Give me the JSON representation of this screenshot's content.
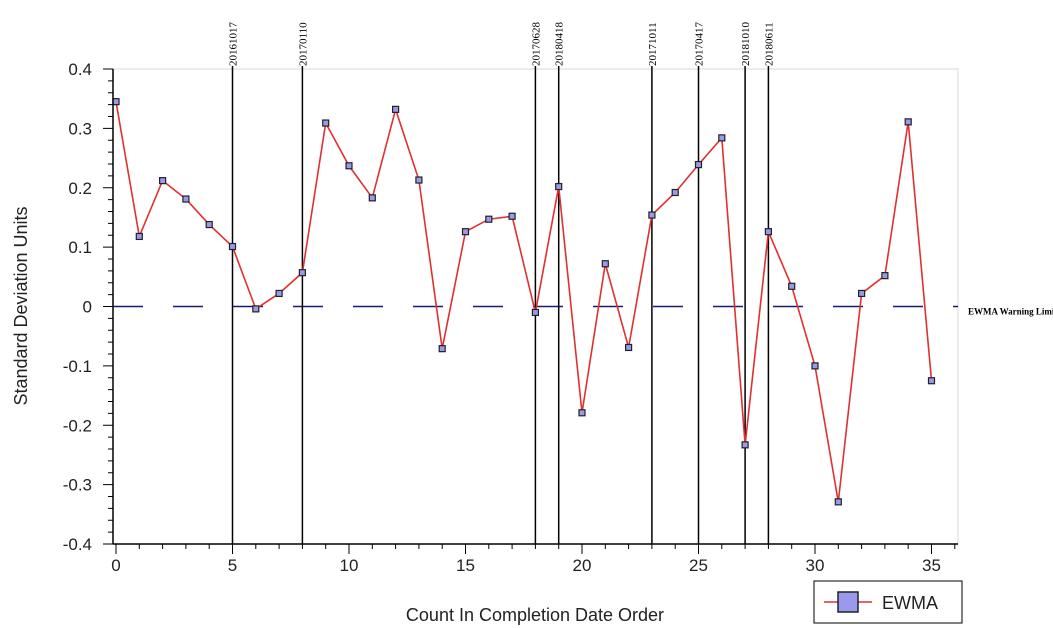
{
  "chart_data": {
    "type": "line",
    "xlabel": "Count In Completion Date Order",
    "ylabel": "Standard Deviation Units",
    "xlim": [
      0,
      36
    ],
    "ylim": [
      -0.4,
      0.4
    ],
    "x_ticks": [
      0,
      5,
      10,
      15,
      20,
      25,
      30,
      35
    ],
    "y_ticks": [
      0.4,
      0.3,
      0.2,
      0.1,
      0,
      -0.1,
      -0.2,
      -0.3,
      -0.4
    ],
    "x_tick_labels": [
      "0",
      "5",
      "10",
      "15",
      "20",
      "25",
      "30",
      "35"
    ],
    "y_tick_labels": [
      "0.4",
      "0.3",
      "0.2",
      "0.1",
      "0",
      "-0.1",
      "-0.2",
      "-0.3",
      "-0.4"
    ],
    "series": [
      {
        "name": "EWMA",
        "color": "#e03030",
        "marker_color": "#9999ee",
        "x": [
          0,
          1,
          2,
          3,
          4,
          5,
          6,
          7,
          8,
          9,
          10,
          11,
          12,
          13,
          14,
          15,
          16,
          17,
          18,
          19,
          20,
          21,
          22,
          23,
          24,
          25,
          26,
          27,
          28,
          29,
          30,
          31,
          32,
          33,
          34,
          35
        ],
        "values": [
          0.345,
          0.118,
          0.212,
          0.181,
          0.138,
          0.101,
          -0.004,
          0.022,
          0.057,
          0.309,
          0.237,
          0.183,
          0.332,
          0.213,
          -0.071,
          0.126,
          0.147,
          0.152,
          -0.01,
          0.202,
          -0.179,
          0.072,
          -0.069,
          0.154,
          0.192,
          0.239,
          0.284,
          -0.233,
          0.126,
          0.034,
          -0.1,
          -0.329,
          0.022,
          0.052,
          0.311,
          -0.125
        ]
      }
    ],
    "reference_line": {
      "label": "EWMA Warning Limit",
      "y": 0,
      "color": "#1a1a6e"
    },
    "vertical_lines": [
      {
        "x": 5,
        "label": "20161017"
      },
      {
        "x": 8,
        "label": "20170110"
      },
      {
        "x": 18,
        "label": "20170628"
      },
      {
        "x": 19,
        "label": "20180418"
      },
      {
        "x": 23,
        "label": "20171011"
      },
      {
        "x": 25,
        "label": "20170417"
      },
      {
        "x": 27,
        "label": "20181010"
      },
      {
        "x": 28,
        "label": "20180611"
      }
    ],
    "legend": {
      "position": "bottom-right",
      "entries": [
        "EWMA"
      ]
    },
    "grid": false
  }
}
